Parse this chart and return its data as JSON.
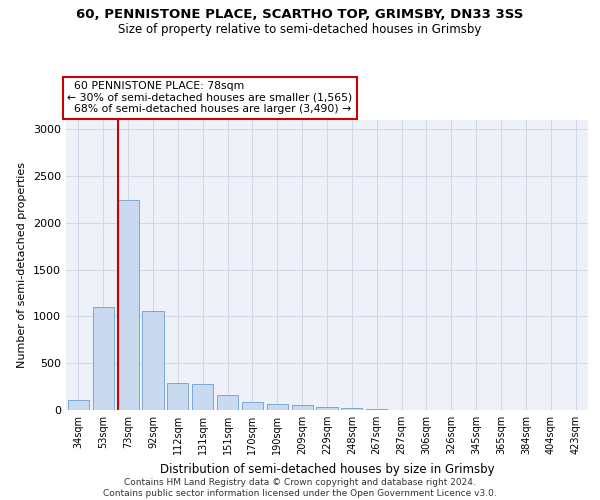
{
  "title1": "60, PENNISTONE PLACE, SCARTHO TOP, GRIMSBY, DN33 3SS",
  "title2": "Size of property relative to semi-detached houses in Grimsby",
  "xlabel": "Distribution of semi-detached houses by size in Grimsby",
  "ylabel": "Number of semi-detached properties",
  "footnote": "Contains HM Land Registry data © Crown copyright and database right 2024.\nContains public sector information licensed under the Open Government Licence v3.0.",
  "categories": [
    "34sqm",
    "53sqm",
    "73sqm",
    "92sqm",
    "112sqm",
    "131sqm",
    "151sqm",
    "170sqm",
    "190sqm",
    "209sqm",
    "229sqm",
    "248sqm",
    "267sqm",
    "287sqm",
    "306sqm",
    "326sqm",
    "345sqm",
    "365sqm",
    "384sqm",
    "404sqm",
    "423sqm"
  ],
  "bar_values": [
    110,
    1100,
    2250,
    1060,
    290,
    280,
    160,
    90,
    60,
    50,
    30,
    20,
    10,
    5,
    3,
    2,
    2,
    2,
    2,
    2,
    2
  ],
  "bar_color": "#c8d9f0",
  "bar_edge_color": "#7aa8d8",
  "grid_color": "#d0d8e8",
  "background_color": "#eef2f8",
  "property_sqm": 78,
  "property_label": "60 PENNISTONE PLACE: 78sqm",
  "pct_smaller": 30,
  "count_smaller": 1565,
  "pct_larger": 68,
  "count_larger": 3490,
  "annotation_box_color": "#ffffff",
  "annotation_box_edge": "#cc0000",
  "vline_color": "#cc0000",
  "vline_bar_index": 2,
  "ylim": [
    0,
    3100
  ],
  "yticks": [
    0,
    500,
    1000,
    1500,
    2000,
    2500,
    3000
  ]
}
